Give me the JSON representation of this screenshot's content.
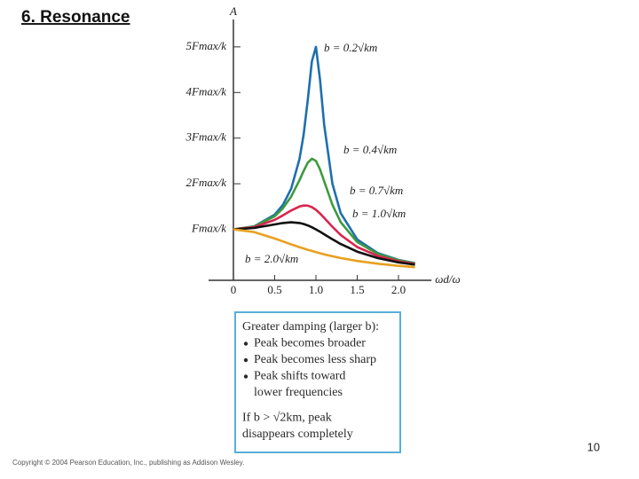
{
  "slide": {
    "title": "6. Resonance",
    "page_number": "10",
    "copyright": "Copyright © 2004 Pearson Education, Inc., publishing as Addison Wesley."
  },
  "chart_data": {
    "type": "line",
    "y_label": "A",
    "x_label": "ωd/ω",
    "x": [
      0,
      0.25,
      0.5,
      0.6,
      0.7,
      0.8,
      0.85,
      0.9,
      0.95,
      1,
      1.05,
      1.1,
      1.2,
      1.3,
      1.5,
      1.75,
      2,
      2.2
    ],
    "series": [
      {
        "name": "b = 0.2√km",
        "color": "#1f6fae",
        "values": [
          1,
          1.065,
          1.322,
          1.536,
          1.891,
          2.538,
          3.073,
          3.821,
          4.683,
          5,
          4.279,
          3.288,
          1.995,
          1.356,
          0.778,
          0.478,
          0.33,
          0.259
        ]
      },
      {
        "name": "b = 0.4√km",
        "color": "#3d9a3d",
        "values": [
          1,
          1.061,
          1.288,
          1.463,
          1.719,
          2.076,
          2.279,
          2.457,
          2.549,
          2.5,
          2.313,
          2.051,
          1.536,
          1.157,
          0.721,
          0.459,
          0.322,
          0.254
        ]
      },
      {
        "name": "b = 0.7√km",
        "color": "#d8264f",
        "values": [
          1,
          1.049,
          1.208,
          1.306,
          1.414,
          1.502,
          1.523,
          1.52,
          1.488,
          1.429,
          1.348,
          1.253,
          1.055,
          0.876,
          0.613,
          0.417,
          0.302,
          0.242
        ]
      },
      {
        "name": "b = 1.0√km",
        "color": "#111111",
        "values": [
          1,
          1.031,
          1.109,
          1.14,
          1.155,
          1.14,
          1.118,
          1.087,
          1.047,
          1,
          0.948,
          0.893,
          0.782,
          0.679,
          0.512,
          0.37,
          0.277,
          0.226
        ]
      },
      {
        "name": "b = 2.0√km",
        "color": "#e8a020",
        "values": [
          1,
          0.941,
          0.8,
          0.735,
          0.671,
          0.61,
          0.581,
          0.552,
          0.526,
          0.5,
          0.476,
          0.452,
          0.41,
          0.372,
          0.308,
          0.246,
          0.2,
          0.171
        ]
      }
    ],
    "xlim": [
      0,
      2.4
    ],
    "ylim": [
      0,
      5.6
    ],
    "xticks": [
      0,
      0.5,
      {
        "value": 1,
        "label": "1.0"
      },
      1.5,
      {
        "value": 2,
        "label": "2.0"
      }
    ],
    "yticks": [
      {
        "value": 1,
        "label": "Fmax/k"
      },
      {
        "value": 2,
        "label": "2Fmax/k"
      },
      {
        "value": 3,
        "label": "3Fmax/k"
      },
      {
        "value": 4,
        "label": "4Fmax/k"
      },
      {
        "value": 5,
        "label": "5Fmax/k"
      }
    ]
  },
  "note_box": {
    "heading": "Greater damping (larger b):",
    "bullets": [
      [
        "Peak becomes broader"
      ],
      [
        "Peak becomes less sharp"
      ],
      [
        "Peak shifts toward",
        "lower frequencies"
      ]
    ],
    "footer": [
      "If b > √2km, peak",
      "disappears completely"
    ]
  }
}
